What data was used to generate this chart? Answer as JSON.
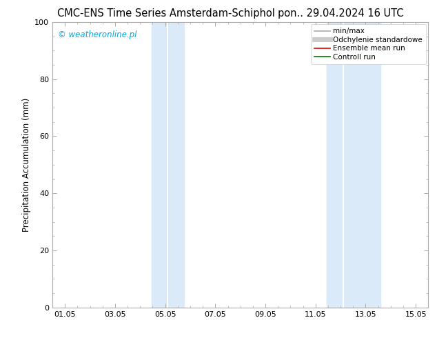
{
  "title_left": "CMC-ENS Time Series Amsterdam-Schiphol",
  "title_right": "pon.. 29.04.2024 16 UTC",
  "ylabel": "Precipitation Accumulation (mm)",
  "watermark": "© weatheronline.pl",
  "watermark_color": "#00aadd",
  "ylim": [
    0,
    100
  ],
  "xtick_labels": [
    "01.05",
    "03.05",
    "05.05",
    "07.05",
    "09.05",
    "11.05",
    "13.05",
    "15.05"
  ],
  "xtick_positions": [
    0,
    2,
    4,
    6,
    8,
    10,
    12,
    14
  ],
  "ytick_labels": [
    "0",
    "20",
    "40",
    "60",
    "80",
    "100"
  ],
  "ytick_positions": [
    0,
    20,
    40,
    60,
    80,
    100
  ],
  "shaded_bands": [
    {
      "x_start": 3.45,
      "x_end": 4.1,
      "color": "#daeaf8",
      "alpha": 1.0
    },
    {
      "x_start": 4.1,
      "x_end": 4.75,
      "color": "#daeaf8",
      "alpha": 1.0
    },
    {
      "x_start": 10.45,
      "x_end": 11.1,
      "color": "#daeaf8",
      "alpha": 1.0
    },
    {
      "x_start": 11.1,
      "x_end": 12.6,
      "color": "#daeaf8",
      "alpha": 1.0
    }
  ],
  "band_separators": [
    4.1,
    11.1
  ],
  "legend_items": [
    {
      "label": "min/max",
      "color": "#aaaaaa",
      "lw": 1.2
    },
    {
      "label": "Odchylenie standardowe",
      "color": "#cccccc",
      "lw": 5.0
    },
    {
      "label": "Ensemble mean run",
      "color": "#dd0000",
      "lw": 1.2
    },
    {
      "label": "Controll run",
      "color": "#007700",
      "lw": 1.2
    }
  ],
  "bg_color": "#ffffff",
  "spine_color": "#aaaaaa",
  "title_fontsize": 10.5,
  "ylabel_fontsize": 8.5,
  "tick_fontsize": 8,
  "watermark_fontsize": 8.5,
  "legend_fontsize": 7.5
}
